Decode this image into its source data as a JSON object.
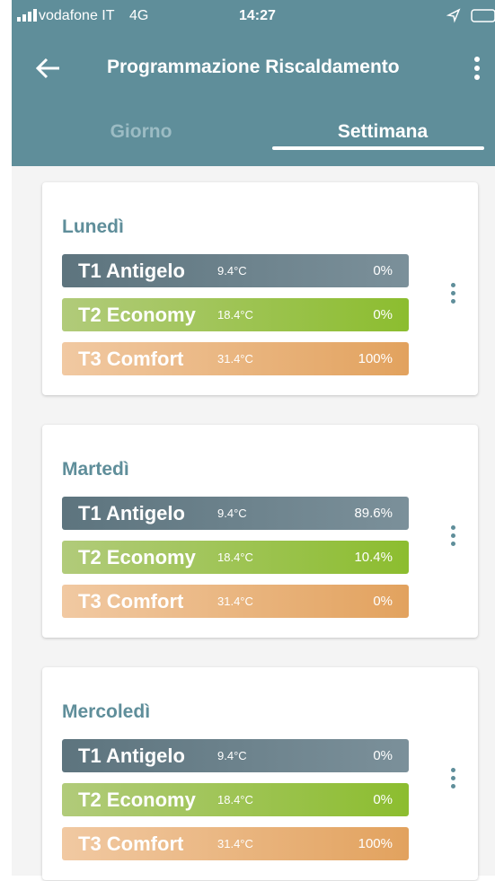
{
  "status": {
    "carrier": "vodafone IT",
    "network": "4G",
    "time": "14:27"
  },
  "header": {
    "title": "Programmazione Riscaldamento"
  },
  "tabs": [
    "Giorno",
    "Settimana"
  ],
  "days": [
    {
      "name": "Lunedì",
      "rows": [
        {
          "label": "T1 Antigelo",
          "temp": "9.4°C",
          "pct": "0%"
        },
        {
          "label": "T2 Economy",
          "temp": "18.4°C",
          "pct": "0%"
        },
        {
          "label": "T3 Comfort",
          "temp": "31.4°C",
          "pct": "100%"
        }
      ]
    },
    {
      "name": "Martedì",
      "rows": [
        {
          "label": "T1 Antigelo",
          "temp": "9.4°C",
          "pct": "89.6%"
        },
        {
          "label": "T2 Economy",
          "temp": "18.4°C",
          "pct": "10.4%"
        },
        {
          "label": "T3 Comfort",
          "temp": "31.4°C",
          "pct": "0%"
        }
      ]
    },
    {
      "name": "Mercoledì",
      "rows": [
        {
          "label": "T1 Antigelo",
          "temp": "9.4°C",
          "pct": "0%"
        },
        {
          "label": "T2 Economy",
          "temp": "18.4°C",
          "pct": "0%"
        },
        {
          "label": "T3 Comfort",
          "temp": "31.4°C",
          "pct": "100%"
        }
      ]
    }
  ]
}
